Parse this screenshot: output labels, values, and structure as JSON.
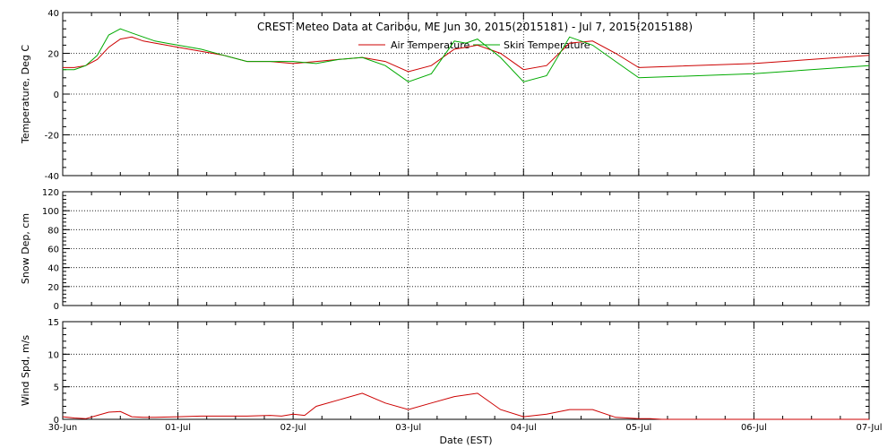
{
  "chart_data": [
    {
      "type": "line",
      "title": "CREST Meteo Data at Caribou, ME   Jun 30, 2015(2015181) - Jul  7, 2015(2015188)",
      "ylabel": "Temperature, Deg C",
      "xlabel": "",
      "ylim": [
        -40,
        40
      ],
      "yticks": [
        -40,
        -20,
        0,
        20,
        40
      ],
      "categories": [
        "30-Jun",
        "01-Jul",
        "02-Jul",
        "03-Jul",
        "04-Jul",
        "05-Jul",
        "06-Jul",
        "07-Jul"
      ],
      "grid": true,
      "legend_position": "top-center",
      "series": [
        {
          "name": "Air Temperature",
          "color": "#cc0000",
          "x": [
            0,
            0.1,
            0.2,
            0.3,
            0.4,
            0.5,
            0.6,
            0.7,
            0.8,
            0.9,
            1.0,
            1.2,
            1.4,
            1.6,
            1.8,
            2.0,
            2.2,
            2.4,
            2.6,
            2.8,
            3.0,
            3.2,
            3.4,
            3.5,
            3.6,
            3.8,
            4.0,
            4.2,
            4.4,
            4.6,
            4.8,
            5.0,
            6.0,
            7.0
          ],
          "y": [
            13,
            13,
            14,
            17,
            23,
            27,
            28,
            26,
            25,
            24,
            23,
            21,
            19,
            16,
            16,
            15,
            16,
            17,
            18,
            16,
            11,
            14,
            22,
            23,
            24,
            20,
            12,
            14,
            25,
            26,
            20,
            13,
            15,
            19
          ]
        },
        {
          "name": "Skin Temperature",
          "color": "#00aa00",
          "x": [
            0,
            0.1,
            0.2,
            0.3,
            0.4,
            0.5,
            0.6,
            0.7,
            0.8,
            0.9,
            1.0,
            1.2,
            1.4,
            1.6,
            1.8,
            2.0,
            2.2,
            2.4,
            2.6,
            2.8,
            3.0,
            3.2,
            3.4,
            3.5,
            3.6,
            3.8,
            4.0,
            4.2,
            4.4,
            4.6,
            4.8,
            5.0,
            6.0,
            7.0
          ],
          "y": [
            12,
            12,
            14,
            19,
            29,
            32,
            30,
            28,
            26,
            25,
            24,
            22,
            19,
            16,
            16,
            16,
            15,
            17,
            18,
            14,
            6,
            10,
            26,
            25,
            27,
            18,
            6,
            9,
            28,
            24,
            16,
            8,
            10,
            14
          ]
        }
      ]
    },
    {
      "type": "line",
      "ylabel": "Snow Dep, cm",
      "xlabel": "",
      "ylim": [
        0,
        120
      ],
      "yticks": [
        0,
        20,
        40,
        60,
        80,
        100,
        120
      ],
      "categories": [
        "30-Jun",
        "01-Jul",
        "02-Jul",
        "03-Jul",
        "04-Jul",
        "05-Jul",
        "06-Jul",
        "07-Jul"
      ],
      "grid": true,
      "series": []
    },
    {
      "type": "line",
      "ylabel": "Wind Spd, m/s",
      "xlabel": "Date (EST)",
      "ylim": [
        0,
        15
      ],
      "yticks": [
        0,
        5,
        10,
        15
      ],
      "categories": [
        "30-Jun",
        "01-Jul",
        "02-Jul",
        "03-Jul",
        "04-Jul",
        "05-Jul",
        "06-Jul",
        "07-Jul"
      ],
      "grid": true,
      "series": [
        {
          "name": "Wind Speed",
          "color": "#cc0000",
          "x": [
            0,
            0.1,
            0.2,
            0.3,
            0.4,
            0.5,
            0.6,
            0.7,
            0.8,
            1.0,
            1.2,
            1.4,
            1.6,
            1.8,
            1.9,
            2.0,
            2.1,
            2.2,
            2.4,
            2.6,
            2.8,
            3.0,
            3.2,
            3.4,
            3.6,
            3.8,
            4.0,
            4.2,
            4.4,
            4.6,
            4.8,
            4.9,
            5.0,
            5.1,
            5.2,
            6.0,
            7.0
          ],
          "y": [
            0.4,
            0.2,
            0.1,
            0.6,
            1.1,
            1.2,
            0.4,
            0.3,
            0.3,
            0.4,
            0.5,
            0.5,
            0.5,
            0.6,
            0.5,
            0.8,
            0.6,
            2.0,
            3.0,
            4.0,
            2.5,
            1.5,
            2.5,
            3.5,
            4.0,
            1.5,
            0.4,
            0.8,
            1.5,
            1.5,
            0.3,
            0.2,
            0.1,
            0.1,
            0,
            0,
            0
          ]
        }
      ]
    }
  ],
  "legend": {
    "air_label": "Air Temperature",
    "skin_label": "Skin Temperature"
  }
}
